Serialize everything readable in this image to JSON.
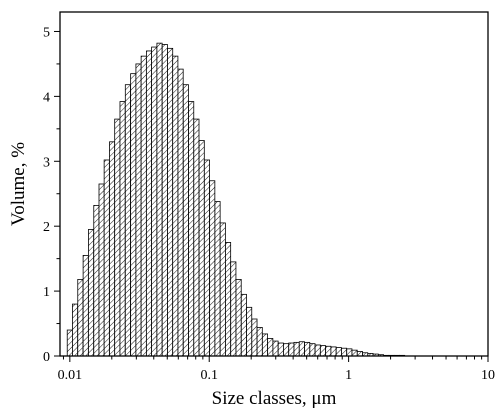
{
  "chart_data": {
    "type": "bar",
    "xlabel": "Size classes, μm",
    "ylabel": "Volume, %",
    "xscale": "log",
    "xlim": [
      0.0085,
      10
    ],
    "ylim": [
      0,
      5.3
    ],
    "x_ticks": [
      {
        "value": 0.01,
        "label": "0.01"
      },
      {
        "value": 0.1,
        "label": "0.1"
      },
      {
        "value": 1,
        "label": "1"
      },
      {
        "value": 10,
        "label": "10"
      }
    ],
    "y_ticks": [
      {
        "value": 0,
        "label": "0"
      },
      {
        "value": 1,
        "label": "1"
      },
      {
        "value": 2,
        "label": "2"
      },
      {
        "value": 3,
        "label": "3"
      },
      {
        "value": 4,
        "label": "4"
      },
      {
        "value": 5,
        "label": "5"
      }
    ],
    "bar_fill": "#ffffff",
    "bar_edge": "#000000",
    "hatch": "diagonal",
    "x": [
      0.01,
      0.0109,
      0.0119,
      0.013,
      0.0142,
      0.0155,
      0.0169,
      0.0184,
      0.0201,
      0.0219,
      0.0239,
      0.0261,
      0.0285,
      0.0311,
      0.0339,
      0.037,
      0.0403,
      0.044,
      0.048,
      0.0524,
      0.0571,
      0.0623,
      0.068,
      0.0742,
      0.0809,
      0.0883,
      0.0963,
      0.1051,
      0.1147,
      0.1251,
      0.1365,
      0.1489,
      0.1625,
      0.1773,
      0.1934,
      0.211,
      0.2302,
      0.2512,
      0.274,
      0.299,
      0.3262,
      0.3559,
      0.3883,
      0.4236,
      0.4621,
      0.5042,
      0.5501,
      0.6002,
      0.6548,
      0.7144,
      0.7794,
      0.8503,
      0.9277,
      1.0121,
      1.1042,
      1.2047,
      1.3143,
      1.4339,
      1.5644,
      1.7068,
      1.8621,
      2.0316,
      2.2165,
      2.4182,
      2.6382,
      2.8783,
      3.1403,
      3.426,
      3.7378,
      4.0779
    ],
    "values": [
      0.4,
      0.8,
      1.18,
      1.55,
      1.95,
      2.32,
      2.65,
      3.02,
      3.3,
      3.65,
      3.92,
      4.18,
      4.35,
      4.5,
      4.62,
      4.7,
      4.76,
      4.82,
      4.8,
      4.74,
      4.62,
      4.42,
      4.18,
      3.92,
      3.65,
      3.32,
      3.02,
      2.7,
      2.38,
      2.05,
      1.75,
      1.45,
      1.18,
      0.95,
      0.75,
      0.57,
      0.44,
      0.34,
      0.27,
      0.23,
      0.2,
      0.19,
      0.2,
      0.21,
      0.22,
      0.21,
      0.19,
      0.17,
      0.16,
      0.15,
      0.14,
      0.13,
      0.12,
      0.11,
      0.09,
      0.07,
      0.05,
      0.04,
      0.03,
      0.02,
      0.01,
      0.01,
      0.01,
      0.01,
      0.0,
      0.0,
      0.0,
      0.0,
      0.0,
      0.0
    ]
  }
}
